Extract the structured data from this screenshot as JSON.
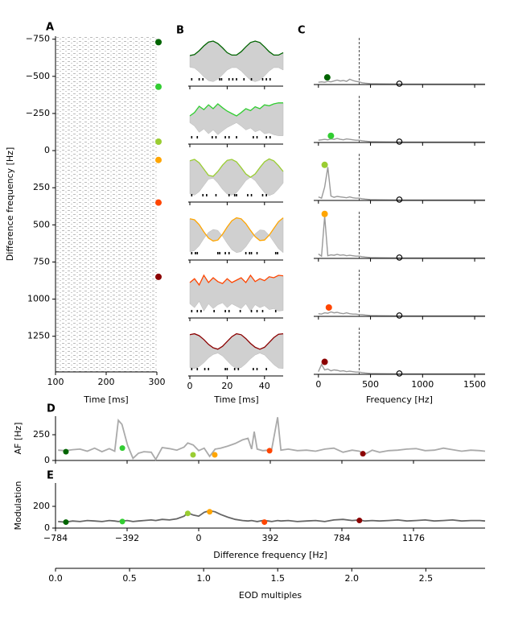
{
  "chart_data": [
    {
      "type": "raster",
      "label": "A",
      "ylabel": "Difference frequency [Hz]",
      "xlabel": "Time [ms]",
      "xlim": [
        100,
        300
      ],
      "xticks": [
        100,
        200,
        300
      ],
      "ylim": [
        -770,
        1490
      ],
      "invert_y": true,
      "yticks": [
        {
          "value": -750,
          "label": "−750"
        },
        {
          "value": -500,
          "label": "−500"
        },
        {
          "value": -250,
          "label": "−250"
        },
        0,
        250,
        500,
        750,
        1000,
        1250
      ],
      "markers": [
        -730,
        -430,
        -60,
        63,
        350,
        850
      ],
      "marker_colors": [
        "#006400",
        "#32cd32",
        "#9acd32",
        "#ffa500",
        "#ff4500",
        "#8b0000"
      ]
    },
    {
      "type": "line",
      "label": "B",
      "xlabel": "Time [ms]",
      "xlim": [
        0,
        50
      ],
      "xticks": [
        0,
        20,
        40
      ],
      "ylim": [
        0,
        1
      ],
      "x": [
        0,
        2.5,
        5,
        7.5,
        10,
        12.5,
        15,
        17.5,
        20,
        22.5,
        25,
        27.5,
        30,
        32.5,
        35,
        37.5,
        40,
        42.5,
        45,
        47.5,
        50
      ],
      "panels": [
        {
          "color": "#006400",
          "values": [
            0.6,
            0.62,
            0.7,
            0.8,
            0.88,
            0.9,
            0.85,
            0.76,
            0.66,
            0.61,
            0.61,
            0.68,
            0.78,
            0.87,
            0.9,
            0.87,
            0.78,
            0.68,
            0.61,
            0.61,
            0.66
          ],
          "spikes": [
            1,
            5,
            7,
            16,
            17,
            21,
            23,
            25,
            29,
            33,
            39,
            41,
            43
          ]
        },
        {
          "color": "#32cd32",
          "values": [
            0.55,
            0.62,
            0.75,
            0.68,
            0.78,
            0.7,
            0.8,
            0.72,
            0.65,
            0.6,
            0.55,
            0.62,
            0.7,
            0.66,
            0.74,
            0.7,
            0.78,
            0.76,
            0.8,
            0.82,
            0.82
          ],
          "spikes": [
            1,
            4,
            12,
            14,
            19,
            21,
            25,
            34,
            36,
            41,
            43
          ]
        },
        {
          "color": "#9acd32",
          "values": [
            0.82,
            0.85,
            0.78,
            0.65,
            0.52,
            0.5,
            0.6,
            0.73,
            0.83,
            0.85,
            0.8,
            0.68,
            0.55,
            0.48,
            0.55,
            0.68,
            0.8,
            0.86,
            0.82,
            0.72,
            0.6
          ],
          "spikes": [
            1,
            7,
            9,
            14,
            21,
            24,
            25,
            31,
            33,
            39,
            41
          ]
        },
        {
          "color": "#ffa500",
          "values": [
            0.82,
            0.8,
            0.7,
            0.55,
            0.42,
            0.36,
            0.38,
            0.5,
            0.65,
            0.78,
            0.84,
            0.82,
            0.72,
            0.58,
            0.45,
            0.37,
            0.38,
            0.48,
            0.62,
            0.76,
            0.84
          ],
          "spikes": [
            1,
            3,
            4,
            15,
            16,
            19,
            21,
            30,
            32,
            33,
            36,
            46,
            47
          ]
        },
        {
          "color": "#ff4500",
          "values": [
            0.7,
            0.78,
            0.65,
            0.85,
            0.7,
            0.8,
            0.72,
            0.68,
            0.78,
            0.7,
            0.75,
            0.8,
            0.7,
            0.85,
            0.72,
            0.78,
            0.74,
            0.82,
            0.8,
            0.85,
            0.84
          ],
          "spikes": [
            1,
            4,
            6,
            13,
            19,
            21,
            27,
            33,
            36,
            39,
            46
          ]
        },
        {
          "color": "#8b0000",
          "values": [
            0.82,
            0.84,
            0.8,
            0.72,
            0.62,
            0.55,
            0.52,
            0.58,
            0.68,
            0.78,
            0.84,
            0.82,
            0.74,
            0.64,
            0.56,
            0.52,
            0.56,
            0.66,
            0.76,
            0.83,
            0.84
          ],
          "spikes": [
            1,
            4,
            8,
            10,
            19,
            20,
            24,
            26,
            34,
            36,
            41
          ]
        }
      ]
    },
    {
      "type": "spectrum",
      "label": "C",
      "xlabel": "Frequency [Hz]",
      "xlim": [
        -45,
        1600
      ],
      "xticks": [
        0,
        500,
        1000,
        1500
      ],
      "ylim": [
        0,
        1.05
      ],
      "dashed_x": 392,
      "x": [
        0,
        30,
        60,
        90,
        120,
        150,
        180,
        210,
        240,
        270,
        300,
        330,
        360,
        390,
        420,
        450,
        500,
        600,
        800,
        1000,
        1200,
        1400,
        1600
      ],
      "panels": [
        {
          "color": "#006400",
          "values": [
            0.05,
            0.06,
            0.05,
            0.07,
            0.06,
            0.08,
            0.1,
            0.08,
            0.09,
            0.07,
            0.12,
            0.09,
            0.07,
            0.06,
            0.04,
            0.03,
            0.02,
            0.015,
            0.01,
            0.01,
            0.01,
            0.01,
            0.01
          ],
          "peak_x": 85,
          "peak_y": 0.16,
          "eod_x": 777,
          "eod_y": 0.02
        },
        {
          "color": "#32cd32",
          "values": [
            0.05,
            0.06,
            0.07,
            0.06,
            0.08,
            0.07,
            0.09,
            0.07,
            0.06,
            0.08,
            0.07,
            0.06,
            0.05,
            0.05,
            0.04,
            0.03,
            0.02,
            0.015,
            0.01,
            0.01,
            0.01,
            0.01,
            0.01
          ],
          "peak_x": 120,
          "peak_y": 0.15,
          "eod_x": 777,
          "eod_y": 0.02
        },
        {
          "color": "#9acd32",
          "values": [
            0.08,
            0.05,
            0.3,
            0.75,
            0.1,
            0.07,
            0.09,
            0.08,
            0.07,
            0.06,
            0.08,
            0.06,
            0.05,
            0.05,
            0.04,
            0.03,
            0.02,
            0.015,
            0.01,
            0.01,
            0.01,
            0.01,
            0.01
          ],
          "peak_x": 60,
          "peak_y": 0.8,
          "eod_x": 777,
          "eod_y": 0.02
        },
        {
          "color": "#ffa500",
          "values": [
            0.1,
            0.05,
            0.95,
            0.06,
            0.08,
            0.07,
            0.09,
            0.07,
            0.08,
            0.06,
            0.07,
            0.06,
            0.05,
            0.05,
            0.04,
            0.03,
            0.02,
            0.015,
            0.01,
            0.01,
            0.01,
            0.01,
            0.01
          ],
          "peak_x": 60,
          "peak_y": 1.0,
          "eod_x": 777,
          "eod_y": 0.02
        },
        {
          "color": "#ff4500",
          "values": [
            0.06,
            0.05,
            0.08,
            0.07,
            0.1,
            0.08,
            0.09,
            0.07,
            0.06,
            0.08,
            0.06,
            0.05,
            0.05,
            0.04,
            0.04,
            0.03,
            0.02,
            0.015,
            0.01,
            0.01,
            0.01,
            0.01,
            0.01
          ],
          "peak_x": 100,
          "peak_y": 0.2,
          "eod_x": 777,
          "eod_y": 0.02
        },
        {
          "color": "#8b0000",
          "values": [
            0.06,
            0.22,
            0.1,
            0.12,
            0.08,
            0.1,
            0.09,
            0.07,
            0.08,
            0.06,
            0.07,
            0.06,
            0.05,
            0.05,
            0.04,
            0.03,
            0.02,
            0.015,
            0.01,
            0.01,
            0.01,
            0.01,
            0.01
          ],
          "peak_x": 60,
          "peak_y": 0.28,
          "eod_x": 777,
          "eod_y": 0.02
        }
      ]
    },
    {
      "type": "line",
      "label": "D",
      "ylabel": "AF [Hz]",
      "xlim": [
        -784,
        1568
      ],
      "ylim": [
        0,
        430
      ],
      "yticks": [
        0,
        250
      ],
      "color": "#aaaaaa",
      "x": [
        -770,
        -730,
        -690,
        -650,
        -610,
        -570,
        -530,
        -490,
        -460,
        -440,
        -420,
        -390,
        -360,
        -330,
        -300,
        -260,
        -235,
        -200,
        -160,
        -120,
        -80,
        -60,
        -30,
        0,
        30,
        60,
        90,
        120,
        160,
        200,
        240,
        270,
        290,
        304,
        320,
        350,
        380,
        400,
        432,
        450,
        490,
        540,
        590,
        640,
        690,
        740,
        790,
        840,
        880,
        910,
        950,
        990,
        1040,
        1090,
        1140,
        1190,
        1240,
        1290,
        1340,
        1390,
        1440,
        1490,
        1540,
        1568
      ],
      "values": [
        100,
        95,
        105,
        110,
        90,
        120,
        85,
        115,
        90,
        390,
        350,
        150,
        20,
        70,
        85,
        80,
        10,
        125,
        115,
        100,
        130,
        170,
        150,
        95,
        120,
        40,
        110,
        120,
        140,
        165,
        200,
        215,
        110,
        280,
        110,
        95,
        100,
        110,
        420,
        100,
        110,
        95,
        100,
        90,
        110,
        120,
        80,
        100,
        90,
        60,
        100,
        80,
        95,
        100,
        110,
        115,
        95,
        100,
        120,
        105,
        90,
        100,
        95,
        90
      ],
      "dots_x": [
        -727,
        -418,
        -31,
        88,
        388,
        899
      ],
      "dots": [
        85,
        120,
        55,
        55,
        95,
        65
      ],
      "dot_colors": [
        "#006400",
        "#32cd32",
        "#9acd32",
        "#ffa500",
        "#ff4500",
        "#8b0000"
      ]
    },
    {
      "type": "line",
      "label": "E",
      "ylabel": "Modulation",
      "xlabel": "Difference frequency [Hz]",
      "xlim": [
        -784,
        1568
      ],
      "ylim": [
        0,
        415
      ],
      "yticks": [
        0,
        200
      ],
      "color": "#666666",
      "xticks": [
        {
          "value": -784,
          "label": "−784"
        },
        {
          "value": -392,
          "label": "−392"
        },
        0,
        392,
        784,
        1176
      ],
      "x": [
        -770,
        -730,
        -690,
        -650,
        -610,
        -570,
        -530,
        -490,
        -460,
        -440,
        -420,
        -390,
        -360,
        -330,
        -300,
        -260,
        -235,
        -200,
        -160,
        -120,
        -80,
        -60,
        -30,
        0,
        30,
        60,
        90,
        120,
        160,
        200,
        240,
        270,
        290,
        304,
        320,
        350,
        380,
        400,
        432,
        450,
        490,
        540,
        590,
        640,
        690,
        740,
        790,
        840,
        880,
        910,
        950,
        990,
        1040,
        1090,
        1140,
        1190,
        1240,
        1290,
        1340,
        1390,
        1440,
        1490,
        1540,
        1568
      ],
      "values": [
        60,
        55,
        65,
        60,
        70,
        65,
        60,
        70,
        65,
        60,
        65,
        70,
        60,
        65,
        70,
        75,
        70,
        80,
        75,
        85,
        110,
        140,
        120,
        110,
        145,
        160,
        150,
        125,
        100,
        80,
        70,
        65,
        70,
        65,
        60,
        70,
        65,
        60,
        70,
        65,
        70,
        60,
        65,
        70,
        60,
        75,
        80,
        70,
        75,
        65,
        70,
        65,
        70,
        75,
        65,
        70,
        75,
        65,
        70,
        75,
        65,
        70,
        70,
        65
      ],
      "dots_x": [
        -727,
        -418,
        -60,
        60,
        360,
        880
      ],
      "dots": [
        55,
        60,
        135,
        150,
        55,
        70
      ],
      "dot_colors": [
        "#006400",
        "#32cd32",
        "#9acd32",
        "#ffa500",
        "#ff4500",
        "#8b0000"
      ],
      "x2label": "EOD multiples",
      "x2lim": [
        0,
        2.9
      ],
      "x2ticks": [
        {
          "value": 0,
          "label": "0.0"
        },
        0.5,
        {
          "value": 1,
          "label": "1.0"
        },
        1.5,
        {
          "value": 2,
          "label": "2.0"
        },
        2.5
      ]
    }
  ]
}
